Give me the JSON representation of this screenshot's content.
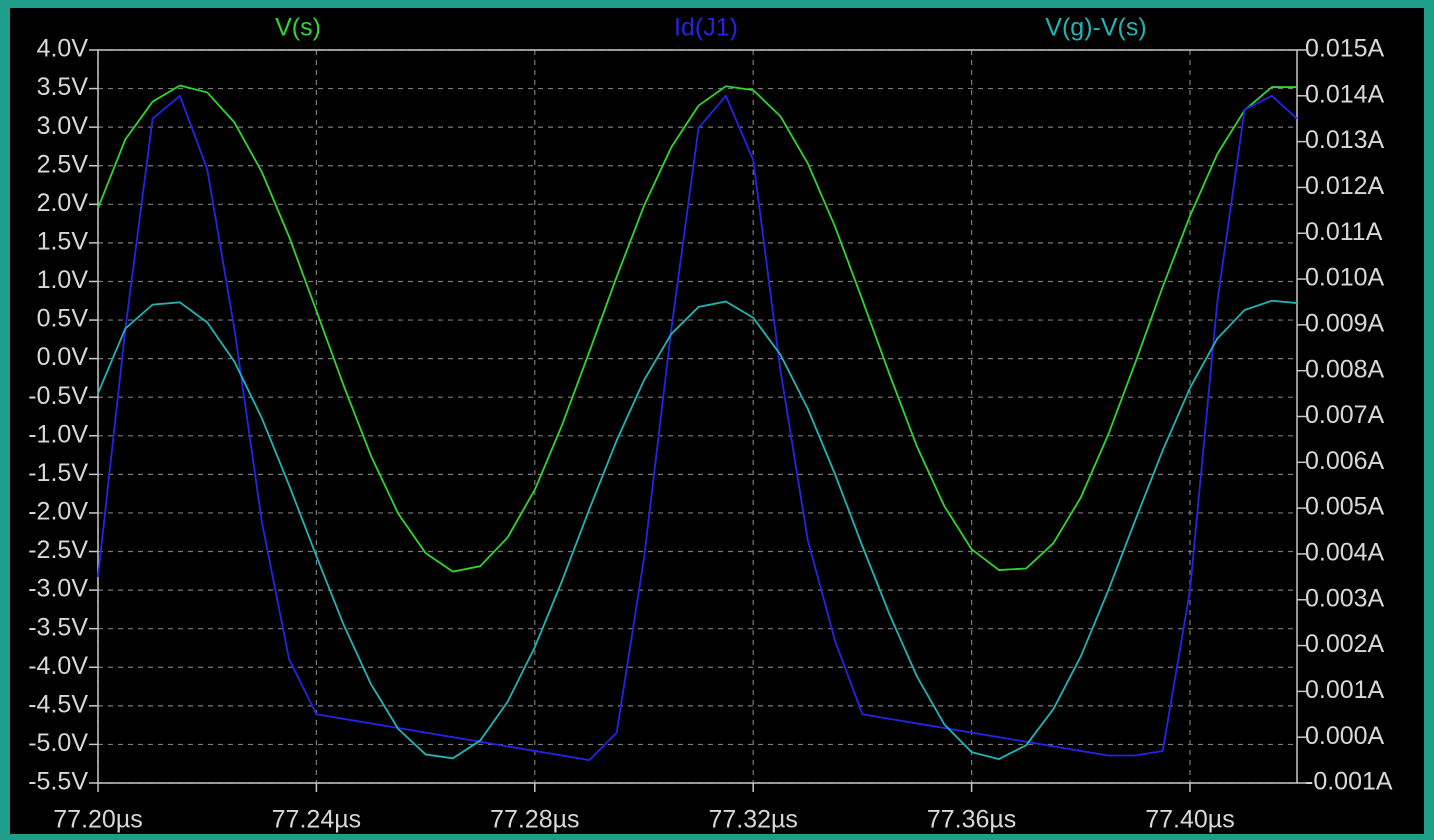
{
  "chart_data": {
    "type": "line",
    "x": [
      77.2,
      77.205,
      77.21,
      77.215,
      77.22,
      77.225,
      77.23,
      77.235,
      77.24,
      77.245,
      77.25,
      77.255,
      77.26,
      77.265,
      77.27,
      77.275,
      77.28,
      77.285,
      77.29,
      77.295,
      77.3,
      77.305,
      77.31,
      77.315,
      77.32,
      77.325,
      77.33,
      77.335,
      77.34,
      77.345,
      77.35,
      77.355,
      77.36,
      77.365,
      77.37,
      77.375,
      77.38,
      77.385,
      77.39,
      77.395,
      77.4,
      77.405,
      77.41,
      77.415,
      77.4196
    ],
    "series": [
      {
        "name": "V(s)",
        "color": "#2fd62f",
        "values": [
          1.95,
          2.84,
          3.33,
          3.54,
          3.45,
          3.06,
          2.42,
          1.58,
          0.62,
          -0.35,
          -1.26,
          -2.01,
          -2.52,
          -2.76,
          -2.69,
          -2.32,
          -1.7,
          -0.86,
          0.09,
          1.06,
          1.98,
          2.74,
          3.28,
          3.53,
          3.48,
          3.14,
          2.53,
          1.71,
          0.76,
          -0.21,
          -1.14,
          -1.91,
          -2.47,
          -2.74,
          -2.72,
          -2.39,
          -1.8,
          -0.99,
          -0.05,
          0.93,
          1.85,
          2.65,
          3.22,
          3.52,
          3.52
        ]
      },
      {
        "name": "Id(J1)",
        "color": "#2424e8",
        "axis": "y2",
        "values": [
          0.0035,
          0.0089,
          0.0135,
          0.014,
          0.0124,
          0.0089,
          0.0047,
          0.0017,
          0.0005,
          0.0004,
          0.0003,
          0.0002,
          0.0001,
          0.0,
          -0.0001,
          -0.0002,
          -0.0003,
          -0.0004,
          -0.0005,
          0.0001,
          0.0039,
          0.0089,
          0.0133,
          0.014,
          0.0126,
          0.008,
          0.0043,
          0.0021,
          0.0005,
          0.0004,
          0.0003,
          0.0002,
          0.0001,
          0.0,
          -0.0001,
          -0.0002,
          -0.0003,
          -0.0004,
          -0.0004,
          -0.0003,
          0.0032,
          0.0095,
          0.0137,
          0.014,
          0.0135
        ]
      },
      {
        "name": "V(g)-V(s)",
        "color": "#1fb5b5",
        "values": [
          -0.45,
          0.39,
          0.7,
          0.73,
          0.47,
          -0.04,
          -0.77,
          -1.64,
          -2.56,
          -3.45,
          -4.22,
          -4.8,
          -5.13,
          -5.18,
          -4.95,
          -4.45,
          -3.74,
          -2.88,
          -1.95,
          -1.06,
          -0.28,
          0.32,
          0.67,
          0.74,
          0.53,
          0.05,
          -0.65,
          -1.5,
          -2.43,
          -3.32,
          -4.12,
          -4.74,
          -5.1,
          -5.19,
          -5.01,
          -4.54,
          -3.86,
          -3.01,
          -2.09,
          -1.19,
          -0.38,
          0.26,
          0.63,
          0.75,
          0.72
        ]
      }
    ],
    "xlim": [
      77.2,
      77.4196
    ],
    "xticks": [
      {
        "value": 77.2,
        "label": "77.20µs"
      },
      {
        "value": 77.24,
        "label": "77.24µs"
      },
      {
        "value": 77.28,
        "label": "77.28µs"
      },
      {
        "value": 77.32,
        "label": "77.32µs"
      },
      {
        "value": 77.36,
        "label": "77.36µs"
      },
      {
        "value": 77.4,
        "label": "77.40µs"
      }
    ],
    "ylim": [
      -5.5,
      4.0
    ],
    "yticks": [
      {
        "value": 4.0,
        "label": "4.0V"
      },
      {
        "value": 3.5,
        "label": "3.5V"
      },
      {
        "value": 3.0,
        "label": "3.0V"
      },
      {
        "value": 2.5,
        "label": "2.5V"
      },
      {
        "value": 2.0,
        "label": "2.0V"
      },
      {
        "value": 1.5,
        "label": "1.5V"
      },
      {
        "value": 1.0,
        "label": "1.0V"
      },
      {
        "value": 0.5,
        "label": "0.5V"
      },
      {
        "value": 0.0,
        "label": "0.0V"
      },
      {
        "value": -0.5,
        "label": "-0.5V"
      },
      {
        "value": -1.0,
        "label": "-1.0V"
      },
      {
        "value": -1.5,
        "label": "-1.5V"
      },
      {
        "value": -2.0,
        "label": "-2.0V"
      },
      {
        "value": -2.5,
        "label": "-2.5V"
      },
      {
        "value": -3.0,
        "label": "-3.0V"
      },
      {
        "value": -3.5,
        "label": "-3.5V"
      },
      {
        "value": -4.0,
        "label": "-4.0V"
      },
      {
        "value": -4.5,
        "label": "-4.5V"
      },
      {
        "value": -5.0,
        "label": "-5.0V"
      },
      {
        "value": -5.5,
        "label": "-5.5V"
      }
    ],
    "y2lim": [
      -0.001,
      0.015
    ],
    "y2ticks": [
      {
        "value": 0.015,
        "label": "0.015A"
      },
      {
        "value": 0.014,
        "label": "0.014A"
      },
      {
        "value": 0.013,
        "label": "0.013A"
      },
      {
        "value": 0.012,
        "label": "0.012A"
      },
      {
        "value": 0.011,
        "label": "0.011A"
      },
      {
        "value": 0.01,
        "label": "0.010A"
      },
      {
        "value": 0.009,
        "label": "0.009A"
      },
      {
        "value": 0.008,
        "label": "0.008A"
      },
      {
        "value": 0.007,
        "label": "0.007A"
      },
      {
        "value": 0.006,
        "label": "0.006A"
      },
      {
        "value": 0.005,
        "label": "0.005A"
      },
      {
        "value": 0.004,
        "label": "0.004A"
      },
      {
        "value": 0.003,
        "label": "0.003A"
      },
      {
        "value": 0.002,
        "label": "0.002A"
      },
      {
        "value": 0.001,
        "label": "0.001A"
      },
      {
        "value": 0.0,
        "label": "0.000A"
      },
      {
        "value": -0.001,
        "label": "-0.001A"
      }
    ],
    "grid": true
  }
}
